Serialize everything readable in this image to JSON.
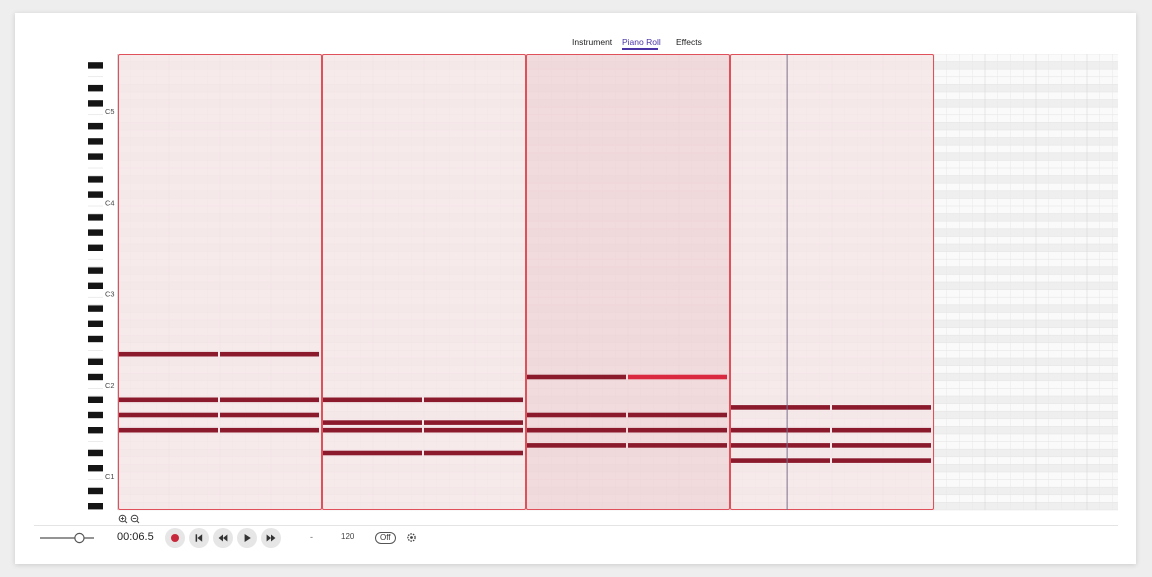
{
  "tabs": [
    {
      "label": "Instrument",
      "active": false
    },
    {
      "label": "Piano Roll",
      "active": true
    },
    {
      "label": "Effects",
      "active": false
    }
  ],
  "piano": {
    "octave_labels": [
      "C5",
      "C4",
      "C3",
      "C2",
      "C1"
    ],
    "top_note": "G5",
    "visible_semitones": 60
  },
  "clips": [
    {
      "notes": [
        {
          "pitch": "E2"
        },
        {
          "pitch": "A#1"
        },
        {
          "pitch": "G#1"
        },
        {
          "pitch": "F#1"
        }
      ]
    },
    {
      "notes": [
        {
          "pitch": "A#1"
        },
        {
          "pitch": "G1"
        },
        {
          "pitch": "F#1"
        },
        {
          "pitch": "D#1"
        }
      ]
    },
    {
      "selected": true,
      "notes": [
        {
          "pitch": "C#2"
        },
        {
          "pitch": "G#1"
        },
        {
          "pitch": "F#1"
        },
        {
          "pitch": "E1"
        }
      ]
    },
    {
      "notes": [
        {
          "pitch": "A1"
        },
        {
          "pitch": "F#1"
        },
        {
          "pitch": "E1"
        },
        {
          "pitch": "D1"
        }
      ]
    }
  ],
  "empty_bars": 1,
  "notes_per_clip_row": 2,
  "playhead_position_bars": 3.28,
  "colors": {
    "accent": "#4b35a6",
    "clip_border": "#e0505a",
    "clip_fill": "#f6e5e7",
    "clip_fill_selected": "#efd2d5",
    "note": "#8a1a2c",
    "note_selected": "#d9283f",
    "record": "#c8283c"
  },
  "zoom": {
    "in_icon": "zoom-in-icon",
    "out_icon": "zoom-out-icon"
  },
  "transport": {
    "volume_level": 0.72,
    "time": "00:06.5",
    "separator": "-",
    "tempo": "120",
    "metronome": "Off",
    "icons": [
      "record-icon",
      "skip-start-icon",
      "rewind-icon",
      "play-icon",
      "fast-forward-icon",
      "settings-icon"
    ]
  }
}
